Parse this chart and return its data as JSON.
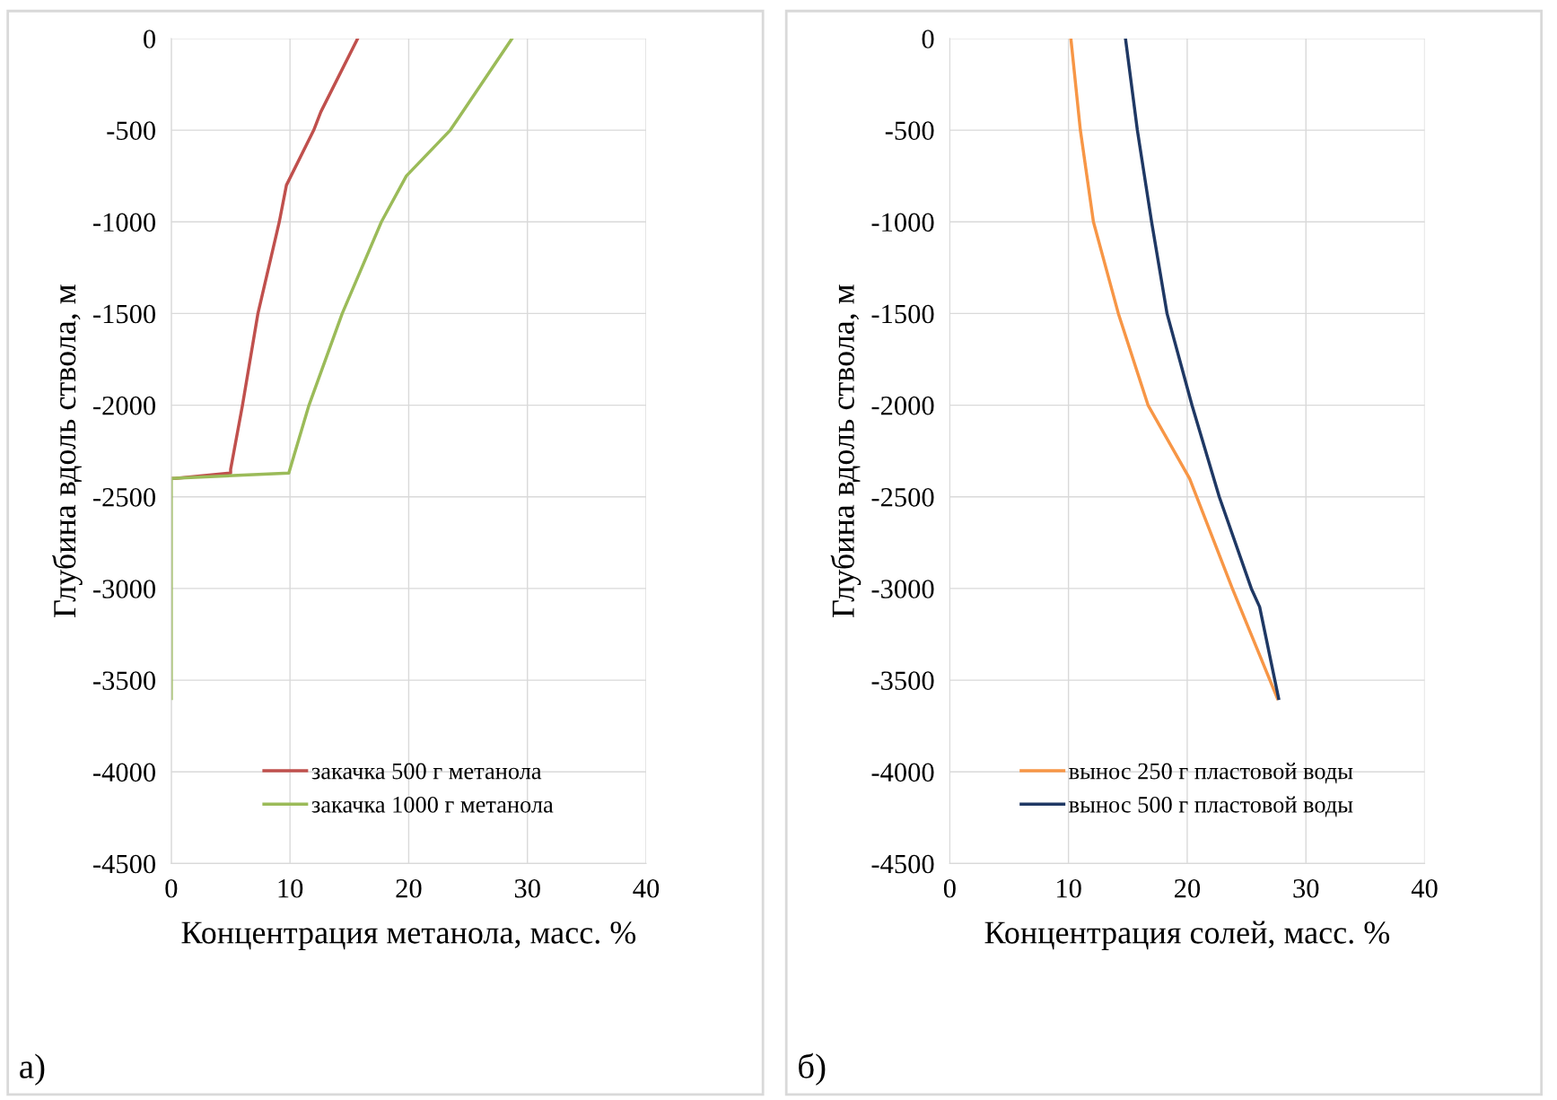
{
  "chart_data": [
    {
      "type": "line",
      "xlabel": "Концентрация метанола, масс. %",
      "ylabel": "Глубина вдоль ствола, м",
      "xlim": [
        0,
        40
      ],
      "xticks": [
        0,
        10,
        20,
        30,
        40
      ],
      "ylim": [
        -4500,
        0
      ],
      "yticks": [
        -4500,
        -4000,
        -3500,
        -3000,
        -2500,
        -2000,
        -1500,
        -1000,
        -500,
        0
      ],
      "grid": true,
      "legend": "bottom",
      "annotations": [
        "а)"
      ],
      "series": [
        {
          "name": "закачка 500 г метанола",
          "color": "#c0504d",
          "x": [
            15.7,
            12.6,
            12.0,
            9.7,
            9.1,
            7.3,
            6.0,
            5.0,
            5.0,
            0.3,
            0
          ],
          "values": [
            0,
            -400,
            -500,
            -800,
            -1000,
            -1500,
            -2000,
            -2350,
            -2370,
            -2400,
            -2400
          ]
        },
        {
          "name": "закачка 1000 г метанола",
          "color": "#9bbb59",
          "x": [
            28.7,
            23.5,
            19.8,
            17.7,
            14.4,
            11.6,
            9.9,
            0,
            0
          ],
          "values": [
            0,
            -500,
            -750,
            -1000,
            -1500,
            -2000,
            -2370,
            -2400,
            -3600
          ]
        }
      ]
    },
    {
      "type": "line",
      "xlabel": "Концентрация солей, масс. %",
      "ylabel": "Глубина вдоль ствола, м",
      "xlim": [
        0,
        40
      ],
      "xticks": [
        0,
        10,
        20,
        30,
        40
      ],
      "ylim": [
        -4500,
        0
      ],
      "yticks": [
        -4500,
        -4000,
        -3500,
        -3000,
        -2500,
        -2000,
        -1500,
        -1000,
        -500,
        0
      ],
      "grid": true,
      "legend": "bottom",
      "annotations": [
        "б)"
      ],
      "series": [
        {
          "name": "вынос 250 г пластовой воды",
          "color": "#f79646",
          "x": [
            10.2,
            11.0,
            12.1,
            14.2,
            16.7,
            20.2,
            23.8,
            27.6
          ],
          "values": [
            0,
            -500,
            -1000,
            -1500,
            -2000,
            -2400,
            -3000,
            -3600
          ]
        },
        {
          "name": "вынос 500 г пластовой воды",
          "color": "#1f3864",
          "x": [
            14.8,
            15.8,
            17.0,
            18.3,
            20.4,
            22.7,
            25.4,
            26.1,
            27.7
          ],
          "values": [
            0,
            -500,
            -1000,
            -1500,
            -2000,
            -2500,
            -3000,
            -3100,
            -3600
          ]
        }
      ]
    }
  ]
}
